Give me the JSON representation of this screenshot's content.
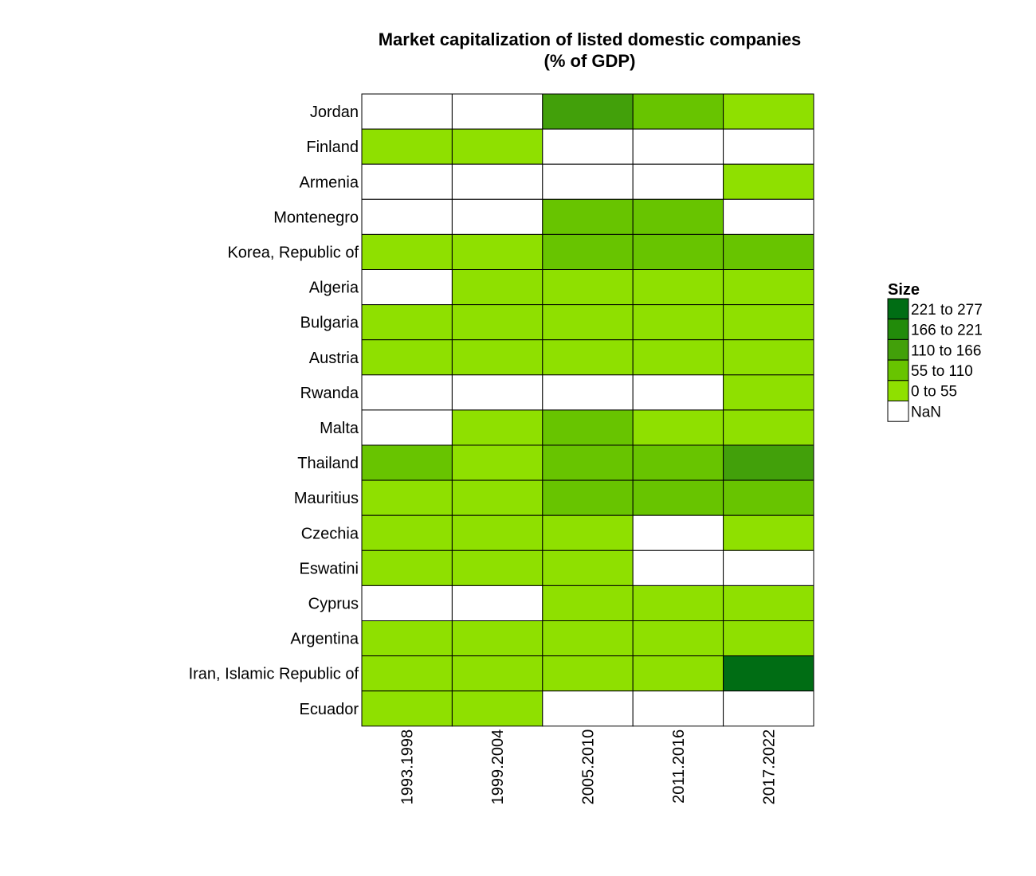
{
  "chart_data": {
    "type": "heatmap",
    "title": [
      "Market capitalization of listed domestic companies",
      "(% of GDP)"
    ],
    "rows": [
      "Jordan",
      "Finland",
      "Armenia",
      "Montenegro",
      "Korea, Republic of",
      "Algeria",
      "Bulgaria",
      "Austria",
      "Rwanda",
      "Malta",
      "Thailand",
      "Mauritius",
      "Czechia",
      "Eswatini",
      "Cyprus",
      "Argentina",
      "Iran, Islamic Republic of",
      "Ecuador"
    ],
    "columns": [
      "1993.1998",
      "1999.2004",
      "2005.2010",
      "2011.2016",
      "2017.2022"
    ],
    "bins": [
      [
        null,
        null,
        2,
        1,
        0
      ],
      [
        0,
        0,
        null,
        null,
        null
      ],
      [
        null,
        null,
        null,
        null,
        0
      ],
      [
        null,
        null,
        1,
        1,
        null
      ],
      [
        0,
        0,
        1,
        1,
        1
      ],
      [
        null,
        0,
        0,
        0,
        0
      ],
      [
        0,
        0,
        0,
        0,
        0
      ],
      [
        0,
        0,
        0,
        0,
        0
      ],
      [
        null,
        null,
        null,
        null,
        0
      ],
      [
        null,
        0,
        1,
        0,
        0
      ],
      [
        1,
        0,
        1,
        1,
        2
      ],
      [
        0,
        0,
        1,
        1,
        1
      ],
      [
        0,
        0,
        0,
        null,
        0
      ],
      [
        0,
        0,
        0,
        null,
        null
      ],
      [
        null,
        null,
        0,
        0,
        0
      ],
      [
        0,
        0,
        0,
        0,
        0
      ],
      [
        0,
        0,
        0,
        0,
        4
      ],
      [
        0,
        0,
        null,
        null,
        null
      ]
    ],
    "legend": {
      "title": "Size",
      "position": "right",
      "entries": [
        {
          "label": "221 to 277",
          "color": "#006d14"
        },
        {
          "label": "166 to 221",
          "color": "#228b0a"
        },
        {
          "label": "110 to 166",
          "color": "#42a00a"
        },
        {
          "label": "55 to 110",
          "color": "#68c400"
        },
        {
          "label": "0 to 55",
          "color": "#8fe000"
        },
        {
          "label": "NaN",
          "color": "#ffffff"
        }
      ]
    }
  }
}
